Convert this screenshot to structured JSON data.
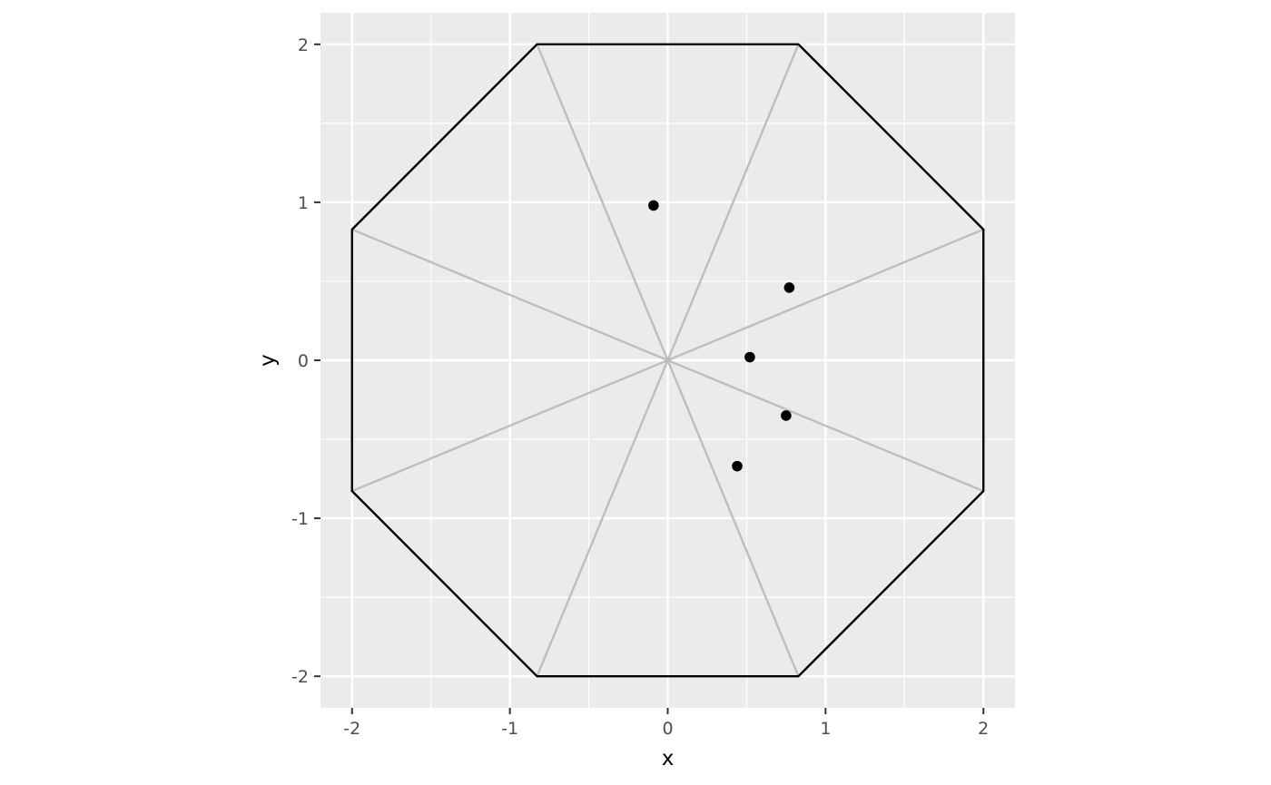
{
  "chart_data": {
    "type": "scatter",
    "xlabel": "x",
    "ylabel": "y",
    "xlim": [
      -2.2,
      2.2
    ],
    "ylim": [
      -2.2,
      2.2
    ],
    "x_ticks": [
      -2,
      -1,
      0,
      1,
      2
    ],
    "y_ticks": [
      -2,
      -1,
      0,
      1,
      2
    ],
    "x_tick_labels": [
      "-2",
      "-1",
      "0",
      "1",
      "2"
    ],
    "y_tick_labels": [
      "-2",
      "-1",
      "0",
      "1",
      "2"
    ],
    "grid": true,
    "legend": "none",
    "colors": {
      "panel": "#EBEBEB",
      "grid": "#FFFFFF",
      "outline": "#000000",
      "spokes": "#BEBEBE",
      "points": "#000000"
    },
    "octagon_vertices": [
      [
        0.828,
        2
      ],
      [
        2,
        0.828
      ],
      [
        2,
        -0.828
      ],
      [
        0.828,
        -2
      ],
      [
        -0.828,
        -2
      ],
      [
        -2,
        -0.828
      ],
      [
        -2,
        0.828
      ],
      [
        -0.828,
        2
      ]
    ],
    "spoke_center": [
      0,
      0
    ],
    "points": [
      {
        "x": -0.09,
        "y": 0.98
      },
      {
        "x": 0.77,
        "y": 0.46
      },
      {
        "x": 0.52,
        "y": 0.02
      },
      {
        "x": 0.75,
        "y": -0.35
      },
      {
        "x": 0.44,
        "y": -0.67
      }
    ]
  }
}
